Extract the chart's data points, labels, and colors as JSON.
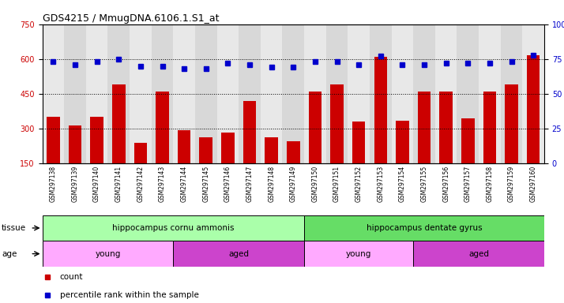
{
  "title": "GDS4215 / MmugDNA.6106.1.S1_at",
  "samples": [
    "GSM297138",
    "GSM297139",
    "GSM297140",
    "GSM297141",
    "GSM297142",
    "GSM297143",
    "GSM297144",
    "GSM297145",
    "GSM297146",
    "GSM297147",
    "GSM297148",
    "GSM297149",
    "GSM297150",
    "GSM297151",
    "GSM297152",
    "GSM297153",
    "GSM297154",
    "GSM297155",
    "GSM297156",
    "GSM297157",
    "GSM297158",
    "GSM297159",
    "GSM297160"
  ],
  "counts": [
    350,
    315,
    350,
    490,
    240,
    460,
    295,
    265,
    285,
    420,
    265,
    245,
    460,
    490,
    330,
    610,
    335,
    460,
    460,
    345,
    460,
    490,
    615
  ],
  "percentiles": [
    73,
    71,
    73,
    75,
    70,
    70,
    68,
    68,
    72,
    71,
    69,
    69,
    73,
    73,
    71,
    77,
    71,
    71,
    72,
    72,
    72,
    73,
    78
  ],
  "ylim_left": [
    150,
    750
  ],
  "ylim_right": [
    0,
    100
  ],
  "yticks_left": [
    150,
    300,
    450,
    600,
    750
  ],
  "yticks_right": [
    0,
    25,
    50,
    75,
    100
  ],
  "bar_color": "#cc0000",
  "dot_color": "#0000cc",
  "tissue_groups": [
    {
      "label": "hippocampus cornu ammonis",
      "start": 0,
      "end": 12,
      "color": "#aaffaa"
    },
    {
      "label": "hippocampus dentate gyrus",
      "start": 12,
      "end": 23,
      "color": "#66dd66"
    }
  ],
  "age_groups": [
    {
      "label": "young",
      "start": 0,
      "end": 6,
      "color": "#ffaaff"
    },
    {
      "label": "aged",
      "start": 6,
      "end": 12,
      "color": "#cc44cc"
    },
    {
      "label": "young",
      "start": 12,
      "end": 17,
      "color": "#ffaaff"
    },
    {
      "label": "aged",
      "start": 17,
      "end": 23,
      "color": "#cc44cc"
    }
  ],
  "tissue_label": "tissue",
  "age_label": "age",
  "legend_count_label": "count",
  "legend_pct_label": "percentile rank within the sample",
  "bg_alternating": [
    "#e8e8e8",
    "#d8d8d8"
  ],
  "plot_bg": "#ffffff",
  "grid_color": "black",
  "grid_lines": [
    300,
    450,
    600
  ]
}
